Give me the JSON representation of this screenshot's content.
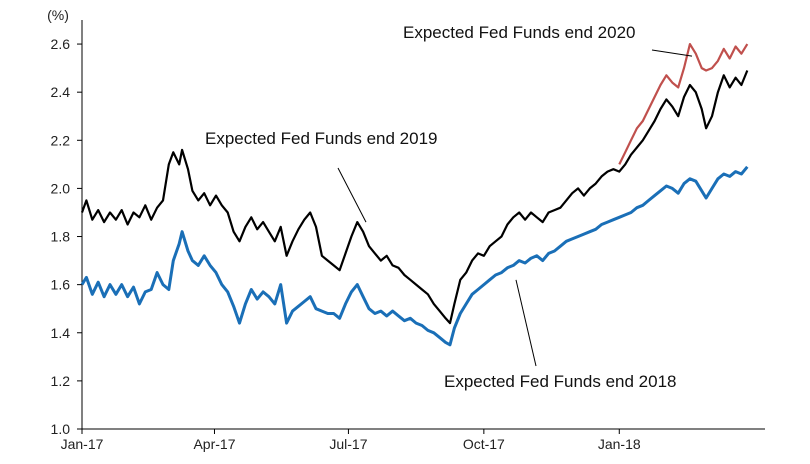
{
  "chart_data": {
    "type": "line",
    "title": "",
    "xlabel": "",
    "ylabel": "",
    "yunit": "(%)",
    "ylim": [
      1.0,
      2.7
    ],
    "yticks": [
      1.0,
      1.2,
      1.4,
      1.6,
      1.8,
      2.0,
      2.2,
      2.4,
      2.6
    ],
    "xlim": [
      "2017-01-01",
      "2018-04-10"
    ],
    "xticks": [
      {
        "date": "2017-01-01",
        "label": "Jan-17"
      },
      {
        "date": "2017-04-01",
        "label": "Apr-17"
      },
      {
        "date": "2017-07-01",
        "label": "Jul-17"
      },
      {
        "date": "2017-10-01",
        "label": "Oct-17"
      },
      {
        "date": "2018-01-01",
        "label": "Jan-18"
      }
    ],
    "grid": false,
    "legend": "none",
    "series": [
      {
        "name": "Expected Fed Funds end 2019",
        "color": "#000000",
        "points": [
          [
            "2017-01-01",
            1.9
          ],
          [
            "2017-01-04",
            1.95
          ],
          [
            "2017-01-08",
            1.87
          ],
          [
            "2017-01-12",
            1.91
          ],
          [
            "2017-01-16",
            1.86
          ],
          [
            "2017-01-20",
            1.9
          ],
          [
            "2017-01-24",
            1.87
          ],
          [
            "2017-01-28",
            1.91
          ],
          [
            "2017-02-01",
            1.85
          ],
          [
            "2017-02-05",
            1.9
          ],
          [
            "2017-02-09",
            1.88
          ],
          [
            "2017-02-13",
            1.93
          ],
          [
            "2017-02-17",
            1.87
          ],
          [
            "2017-02-21",
            1.92
          ],
          [
            "2017-02-25",
            1.95
          ],
          [
            "2017-03-01",
            2.1
          ],
          [
            "2017-03-04",
            2.15
          ],
          [
            "2017-03-08",
            2.1
          ],
          [
            "2017-03-10",
            2.16
          ],
          [
            "2017-03-14",
            2.08
          ],
          [
            "2017-03-17",
            1.99
          ],
          [
            "2017-03-21",
            1.95
          ],
          [
            "2017-03-25",
            1.98
          ],
          [
            "2017-03-29",
            1.93
          ],
          [
            "2017-04-02",
            1.97
          ],
          [
            "2017-04-06",
            1.93
          ],
          [
            "2017-04-10",
            1.9
          ],
          [
            "2017-04-14",
            1.82
          ],
          [
            "2017-04-18",
            1.78
          ],
          [
            "2017-04-22",
            1.84
          ],
          [
            "2017-04-26",
            1.88
          ],
          [
            "2017-04-30",
            1.83
          ],
          [
            "2017-05-04",
            1.86
          ],
          [
            "2017-05-08",
            1.82
          ],
          [
            "2017-05-12",
            1.78
          ],
          [
            "2017-05-16",
            1.84
          ],
          [
            "2017-05-20",
            1.72
          ],
          [
            "2017-05-24",
            1.78
          ],
          [
            "2017-05-28",
            1.83
          ],
          [
            "2017-06-01",
            1.87
          ],
          [
            "2017-06-05",
            1.9
          ],
          [
            "2017-06-09",
            1.84
          ],
          [
            "2017-06-13",
            1.72
          ],
          [
            "2017-06-17",
            1.7
          ],
          [
            "2017-06-21",
            1.68
          ],
          [
            "2017-06-25",
            1.66
          ],
          [
            "2017-06-29",
            1.73
          ],
          [
            "2017-07-03",
            1.8
          ],
          [
            "2017-07-07",
            1.86
          ],
          [
            "2017-07-11",
            1.82
          ],
          [
            "2017-07-15",
            1.76
          ],
          [
            "2017-07-19",
            1.73
          ],
          [
            "2017-07-23",
            1.7
          ],
          [
            "2017-07-27",
            1.72
          ],
          [
            "2017-07-31",
            1.68
          ],
          [
            "2017-08-04",
            1.67
          ],
          [
            "2017-08-08",
            1.64
          ],
          [
            "2017-08-12",
            1.62
          ],
          [
            "2017-08-16",
            1.6
          ],
          [
            "2017-08-20",
            1.58
          ],
          [
            "2017-08-24",
            1.56
          ],
          [
            "2017-08-28",
            1.52
          ],
          [
            "2017-09-01",
            1.49
          ],
          [
            "2017-09-05",
            1.46
          ],
          [
            "2017-09-08",
            1.44
          ],
          [
            "2017-09-11",
            1.52
          ],
          [
            "2017-09-15",
            1.62
          ],
          [
            "2017-09-19",
            1.65
          ],
          [
            "2017-09-23",
            1.7
          ],
          [
            "2017-09-27",
            1.73
          ],
          [
            "2017-10-01",
            1.72
          ],
          [
            "2017-10-05",
            1.76
          ],
          [
            "2017-10-09",
            1.78
          ],
          [
            "2017-10-13",
            1.8
          ],
          [
            "2017-10-17",
            1.85
          ],
          [
            "2017-10-21",
            1.88
          ],
          [
            "2017-10-25",
            1.9
          ],
          [
            "2017-10-29",
            1.87
          ],
          [
            "2017-11-02",
            1.9
          ],
          [
            "2017-11-06",
            1.88
          ],
          [
            "2017-11-10",
            1.86
          ],
          [
            "2017-11-14",
            1.9
          ],
          [
            "2017-11-18",
            1.91
          ],
          [
            "2017-11-22",
            1.92
          ],
          [
            "2017-11-26",
            1.95
          ],
          [
            "2017-11-30",
            1.98
          ],
          [
            "2017-12-04",
            2.0
          ],
          [
            "2017-12-08",
            1.97
          ],
          [
            "2017-12-12",
            2.0
          ],
          [
            "2017-12-16",
            2.02
          ],
          [
            "2017-12-20",
            2.05
          ],
          [
            "2017-12-24",
            2.07
          ],
          [
            "2017-12-28",
            2.08
          ],
          [
            "2018-01-01",
            2.07
          ],
          [
            "2018-01-05",
            2.1
          ],
          [
            "2018-01-09",
            2.14
          ],
          [
            "2018-01-13",
            2.17
          ],
          [
            "2018-01-17",
            2.2
          ],
          [
            "2018-01-21",
            2.24
          ],
          [
            "2018-01-25",
            2.28
          ],
          [
            "2018-01-29",
            2.33
          ],
          [
            "2018-02-02",
            2.37
          ],
          [
            "2018-02-06",
            2.34
          ],
          [
            "2018-02-10",
            2.3
          ],
          [
            "2018-02-14",
            2.38
          ],
          [
            "2018-02-18",
            2.43
          ],
          [
            "2018-02-22",
            2.4
          ],
          [
            "2018-02-26",
            2.33
          ],
          [
            "2018-03-01",
            2.25
          ],
          [
            "2018-03-05",
            2.3
          ],
          [
            "2018-03-09",
            2.4
          ],
          [
            "2018-03-13",
            2.47
          ],
          [
            "2018-03-17",
            2.42
          ],
          [
            "2018-03-21",
            2.46
          ],
          [
            "2018-03-25",
            2.43
          ],
          [
            "2018-03-29",
            2.49
          ]
        ]
      },
      {
        "name": "Expected Fed Funds end 2018",
        "color": "#1a6fb7",
        "points": [
          [
            "2017-01-01",
            1.6
          ],
          [
            "2017-01-04",
            1.63
          ],
          [
            "2017-01-08",
            1.56
          ],
          [
            "2017-01-12",
            1.61
          ],
          [
            "2017-01-16",
            1.55
          ],
          [
            "2017-01-20",
            1.6
          ],
          [
            "2017-01-24",
            1.56
          ],
          [
            "2017-01-28",
            1.6
          ],
          [
            "2017-02-01",
            1.55
          ],
          [
            "2017-02-05",
            1.59
          ],
          [
            "2017-02-09",
            1.52
          ],
          [
            "2017-02-13",
            1.57
          ],
          [
            "2017-02-17",
            1.58
          ],
          [
            "2017-02-21",
            1.65
          ],
          [
            "2017-02-25",
            1.6
          ],
          [
            "2017-03-01",
            1.58
          ],
          [
            "2017-03-04",
            1.7
          ],
          [
            "2017-03-08",
            1.77
          ],
          [
            "2017-03-10",
            1.82
          ],
          [
            "2017-03-14",
            1.74
          ],
          [
            "2017-03-17",
            1.7
          ],
          [
            "2017-03-21",
            1.68
          ],
          [
            "2017-03-25",
            1.72
          ],
          [
            "2017-03-29",
            1.68
          ],
          [
            "2017-04-02",
            1.65
          ],
          [
            "2017-04-06",
            1.6
          ],
          [
            "2017-04-10",
            1.57
          ],
          [
            "2017-04-14",
            1.51
          ],
          [
            "2017-04-18",
            1.44
          ],
          [
            "2017-04-22",
            1.52
          ],
          [
            "2017-04-26",
            1.58
          ],
          [
            "2017-04-30",
            1.54
          ],
          [
            "2017-05-04",
            1.57
          ],
          [
            "2017-05-08",
            1.55
          ],
          [
            "2017-05-12",
            1.52
          ],
          [
            "2017-05-16",
            1.6
          ],
          [
            "2017-05-20",
            1.44
          ],
          [
            "2017-05-24",
            1.49
          ],
          [
            "2017-05-28",
            1.51
          ],
          [
            "2017-06-01",
            1.53
          ],
          [
            "2017-06-05",
            1.55
          ],
          [
            "2017-06-09",
            1.5
          ],
          [
            "2017-06-13",
            1.49
          ],
          [
            "2017-06-17",
            1.48
          ],
          [
            "2017-06-21",
            1.48
          ],
          [
            "2017-06-25",
            1.46
          ],
          [
            "2017-06-29",
            1.52
          ],
          [
            "2017-07-03",
            1.57
          ],
          [
            "2017-07-07",
            1.6
          ],
          [
            "2017-07-11",
            1.55
          ],
          [
            "2017-07-15",
            1.5
          ],
          [
            "2017-07-19",
            1.48
          ],
          [
            "2017-07-23",
            1.49
          ],
          [
            "2017-07-27",
            1.47
          ],
          [
            "2017-07-31",
            1.49
          ],
          [
            "2017-08-04",
            1.47
          ],
          [
            "2017-08-08",
            1.45
          ],
          [
            "2017-08-12",
            1.46
          ],
          [
            "2017-08-16",
            1.44
          ],
          [
            "2017-08-20",
            1.43
          ],
          [
            "2017-08-24",
            1.41
          ],
          [
            "2017-08-28",
            1.4
          ],
          [
            "2017-09-01",
            1.38
          ],
          [
            "2017-09-05",
            1.36
          ],
          [
            "2017-09-08",
            1.35
          ],
          [
            "2017-09-11",
            1.42
          ],
          [
            "2017-09-15",
            1.48
          ],
          [
            "2017-09-19",
            1.52
          ],
          [
            "2017-09-23",
            1.56
          ],
          [
            "2017-09-27",
            1.58
          ],
          [
            "2017-10-01",
            1.6
          ],
          [
            "2017-10-05",
            1.62
          ],
          [
            "2017-10-09",
            1.64
          ],
          [
            "2017-10-13",
            1.65
          ],
          [
            "2017-10-17",
            1.67
          ],
          [
            "2017-10-21",
            1.68
          ],
          [
            "2017-10-25",
            1.7
          ],
          [
            "2017-10-29",
            1.69
          ],
          [
            "2017-11-02",
            1.71
          ],
          [
            "2017-11-06",
            1.72
          ],
          [
            "2017-11-10",
            1.7
          ],
          [
            "2017-11-14",
            1.73
          ],
          [
            "2017-11-18",
            1.74
          ],
          [
            "2017-11-22",
            1.76
          ],
          [
            "2017-11-26",
            1.78
          ],
          [
            "2017-11-30",
            1.79
          ],
          [
            "2017-12-04",
            1.8
          ],
          [
            "2017-12-08",
            1.81
          ],
          [
            "2017-12-12",
            1.82
          ],
          [
            "2017-12-16",
            1.83
          ],
          [
            "2017-12-20",
            1.85
          ],
          [
            "2017-12-24",
            1.86
          ],
          [
            "2017-12-28",
            1.87
          ],
          [
            "2018-01-01",
            1.88
          ],
          [
            "2018-01-05",
            1.89
          ],
          [
            "2018-01-09",
            1.9
          ],
          [
            "2018-01-13",
            1.92
          ],
          [
            "2018-01-17",
            1.93
          ],
          [
            "2018-01-21",
            1.95
          ],
          [
            "2018-01-25",
            1.97
          ],
          [
            "2018-01-29",
            1.99
          ],
          [
            "2018-02-02",
            2.01
          ],
          [
            "2018-02-06",
            2.0
          ],
          [
            "2018-02-10",
            1.98
          ],
          [
            "2018-02-14",
            2.02
          ],
          [
            "2018-02-18",
            2.04
          ],
          [
            "2018-02-22",
            2.03
          ],
          [
            "2018-02-26",
            1.99
          ],
          [
            "2018-03-01",
            1.96
          ],
          [
            "2018-03-05",
            2.0
          ],
          [
            "2018-03-09",
            2.04
          ],
          [
            "2018-03-13",
            2.06
          ],
          [
            "2018-03-17",
            2.05
          ],
          [
            "2018-03-21",
            2.07
          ],
          [
            "2018-03-25",
            2.06
          ],
          [
            "2018-03-29",
            2.09
          ]
        ]
      },
      {
        "name": "Expected Fed Funds end 2020",
        "color": "#c0504d",
        "points": [
          [
            "2018-01-01",
            2.1
          ],
          [
            "2018-01-05",
            2.15
          ],
          [
            "2018-01-09",
            2.2
          ],
          [
            "2018-01-13",
            2.25
          ],
          [
            "2018-01-17",
            2.28
          ],
          [
            "2018-01-21",
            2.33
          ],
          [
            "2018-01-25",
            2.38
          ],
          [
            "2018-01-29",
            2.43
          ],
          [
            "2018-02-02",
            2.47
          ],
          [
            "2018-02-06",
            2.44
          ],
          [
            "2018-02-10",
            2.42
          ],
          [
            "2018-02-14",
            2.5
          ],
          [
            "2018-02-18",
            2.6
          ],
          [
            "2018-02-22",
            2.56
          ],
          [
            "2018-02-26",
            2.5
          ],
          [
            "2018-03-01",
            2.49
          ],
          [
            "2018-03-05",
            2.5
          ],
          [
            "2018-03-09",
            2.53
          ],
          [
            "2018-03-13",
            2.58
          ],
          [
            "2018-03-17",
            2.54
          ],
          [
            "2018-03-21",
            2.59
          ],
          [
            "2018-03-25",
            2.56
          ],
          [
            "2018-03-29",
            2.6
          ]
        ]
      }
    ],
    "annotations": [
      {
        "text": "Expected Fed Funds end 2020",
        "points_to": [
          "2018-02-14",
          2.55
        ]
      },
      {
        "text": "Expected Fed Funds end 2019",
        "points_to": [
          "2017-07-01",
          1.86
        ]
      },
      {
        "text": "Expected Fed Funds end 2018",
        "points_to": [
          "2017-10-05",
          1.62
        ]
      }
    ]
  }
}
